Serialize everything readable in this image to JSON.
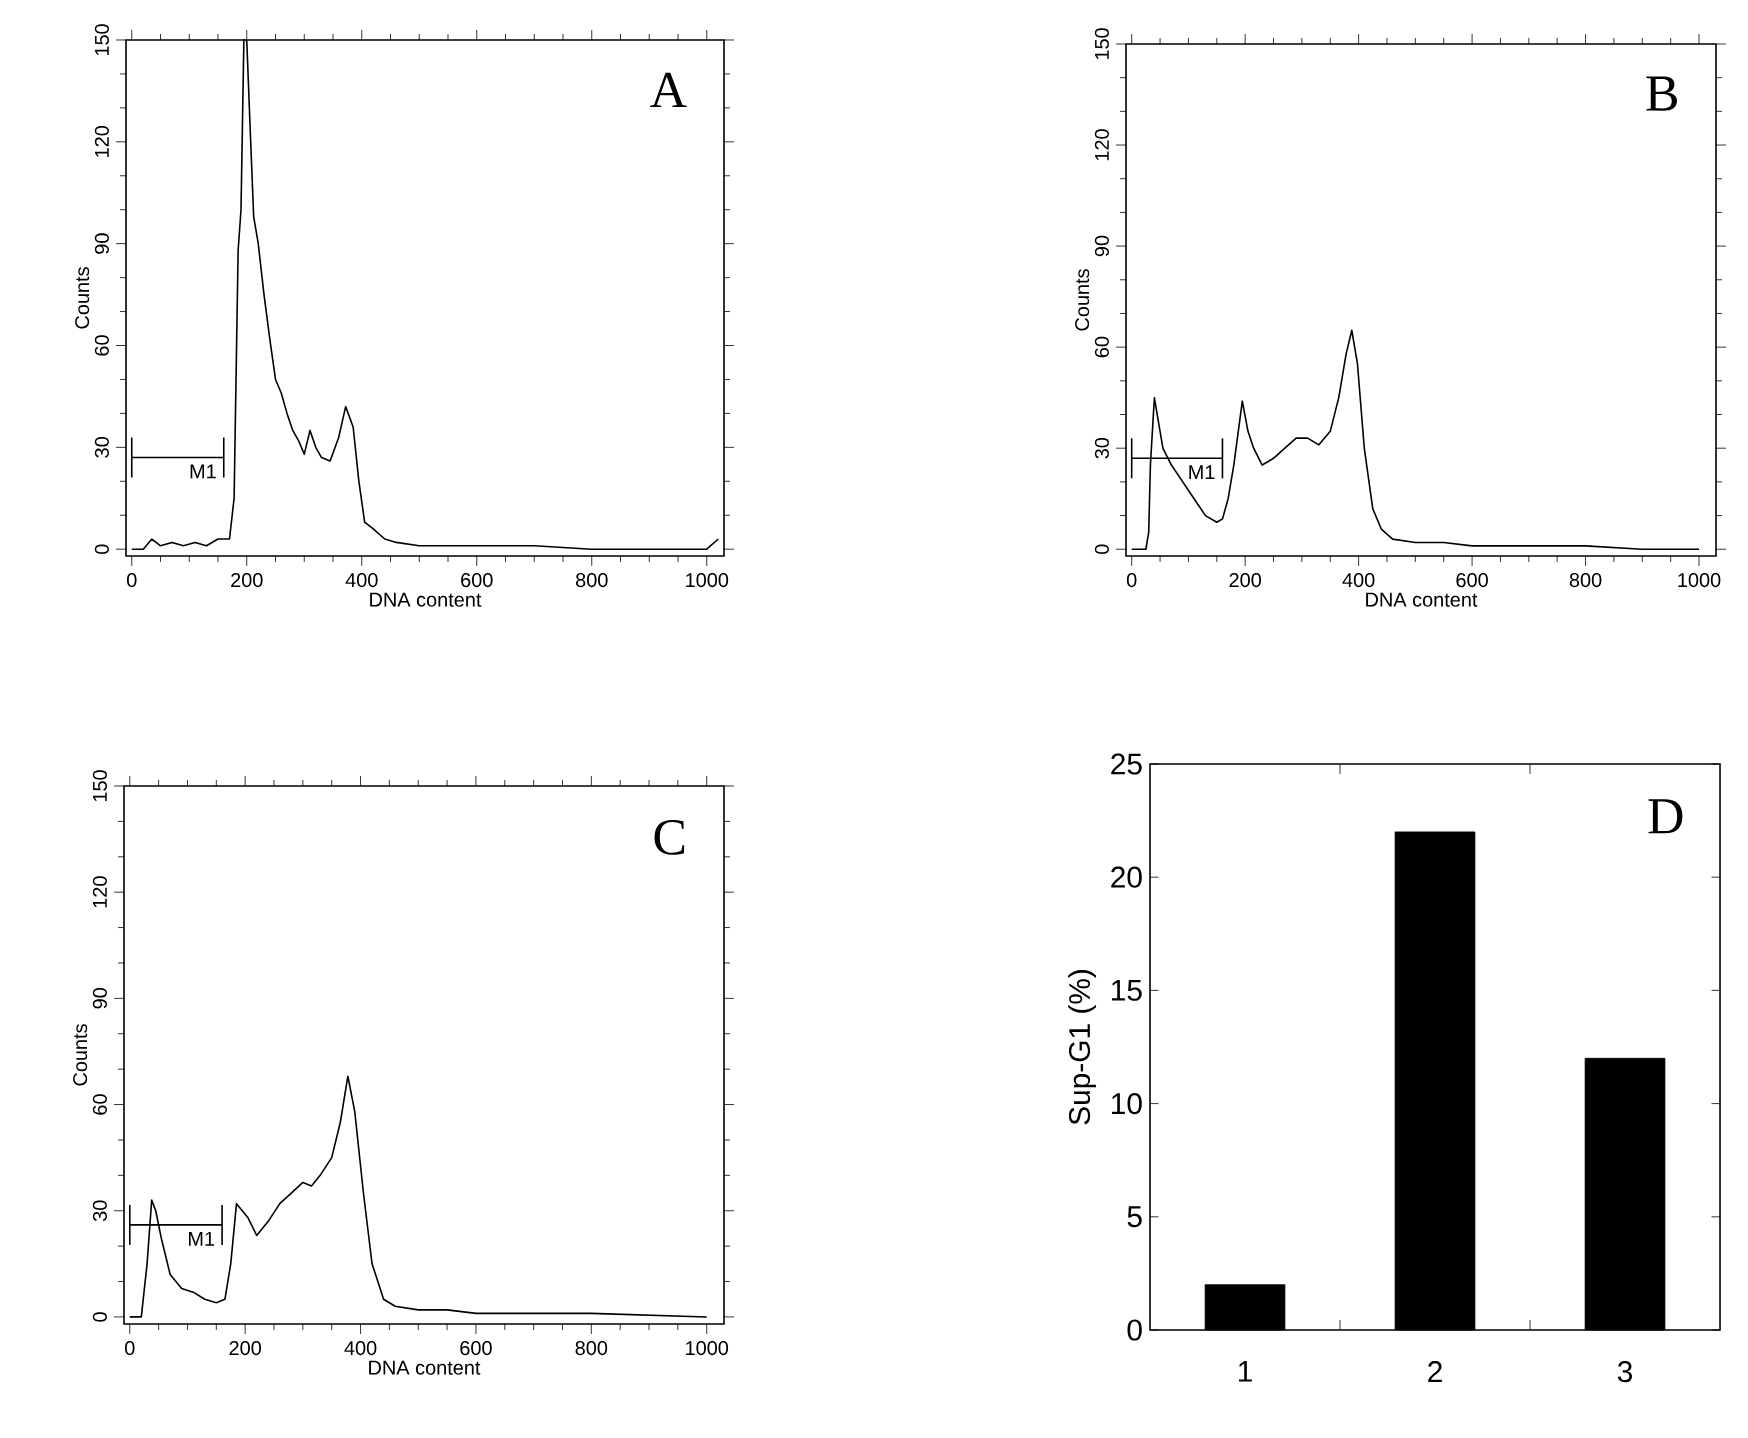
{
  "chart_data": [
    {
      "type": "line",
      "xlabel": "DNA content",
      "ylabel": "Counts",
      "xlim": [
        -10,
        1030
      ],
      "ylim": [
        -2,
        150
      ],
      "xticks": [
        0,
        200,
        400,
        600,
        800,
        1000
      ],
      "yticks": [
        0,
        30,
        60,
        90,
        120,
        150
      ],
      "annotations": [
        "A",
        "M1"
      ],
      "series": [
        {
          "color": "#000000",
          "x": [
            0,
            20,
            35,
            50,
            70,
            90,
            110,
            130,
            150,
            170,
            178,
            185,
            190,
            195,
            200,
            205,
            212,
            220,
            230,
            240,
            250,
            260,
            270,
            280,
            290,
            300,
            310,
            320,
            330,
            345,
            360,
            372,
            385,
            395,
            405,
            420,
            440,
            460,
            500,
            600,
            700,
            800,
            1000,
            1020
          ],
          "values": [
            0,
            0,
            3,
            1,
            2,
            1,
            2,
            1,
            3,
            3,
            15,
            88,
            100,
            150,
            150,
            128,
            98,
            90,
            75,
            62,
            50,
            46,
            40,
            35,
            32,
            28,
            35,
            30,
            27,
            26,
            33,
            42,
            36,
            20,
            8,
            6,
            3,
            2,
            1,
            1,
            1,
            0,
            0,
            3
          ]
        },
        {
          "type": "line",
          "color": "#000000",
          "x": [
            0,
            160
          ],
          "values": [
            27,
            27
          ]
        }
      ]
    },
    {
      "type": "line",
      "xlabel": "DNA content",
      "ylabel": "Counts",
      "xlim": [
        -10,
        1030
      ],
      "ylim": [
        -2,
        150
      ],
      "xticks": [
        0,
        200,
        400,
        600,
        800,
        1000
      ],
      "yticks": [
        0,
        30,
        60,
        90,
        120,
        150
      ],
      "annotations": [
        "B",
        "M1"
      ],
      "series": [
        {
          "color": "#000000",
          "x": [
            0,
            25,
            30,
            33,
            40,
            45,
            55,
            70,
            90,
            110,
            130,
            150,
            160,
            170,
            180,
            195,
            205,
            215,
            230,
            250,
            270,
            290,
            310,
            330,
            350,
            365,
            378,
            388,
            398,
            410,
            425,
            440,
            460,
            500,
            550,
            600,
            700,
            800,
            900,
            1000
          ],
          "values": [
            0,
            0,
            5,
            25,
            45,
            40,
            30,
            25,
            20,
            15,
            10,
            8,
            9,
            15,
            25,
            44,
            35,
            30,
            25,
            27,
            30,
            33,
            33,
            31,
            35,
            45,
            58,
            65,
            55,
            30,
            12,
            6,
            3,
            2,
            2,
            1,
            1,
            1,
            0,
            0
          ]
        },
        {
          "type": "line",
          "color": "#000000",
          "x": [
            0,
            160
          ],
          "values": [
            27,
            27
          ]
        }
      ]
    },
    {
      "type": "line",
      "xlabel": "DNA content",
      "ylabel": "Counts",
      "xlim": [
        -10,
        1030
      ],
      "ylim": [
        -2,
        150
      ],
      "xticks": [
        0,
        200,
        400,
        600,
        800,
        1000
      ],
      "yticks": [
        0,
        30,
        60,
        90,
        120,
        150
      ],
      "annotations": [
        "C",
        "M1"
      ],
      "series": [
        {
          "color": "#000000",
          "x": [
            0,
            20,
            30,
            38,
            45,
            55,
            70,
            90,
            110,
            130,
            150,
            165,
            175,
            185,
            195,
            205,
            220,
            240,
            260,
            280,
            300,
            315,
            330,
            350,
            365,
            378,
            390,
            405,
            420,
            440,
            460,
            500,
            550,
            600,
            700,
            800,
            1000
          ],
          "values": [
            0,
            0,
            15,
            33,
            30,
            22,
            12,
            8,
            7,
            5,
            4,
            5,
            15,
            32,
            30,
            28,
            23,
            27,
            32,
            35,
            38,
            37,
            40,
            45,
            55,
            68,
            58,
            35,
            15,
            5,
            3,
            2,
            2,
            1,
            1,
            1,
            0
          ]
        },
        {
          "type": "line",
          "color": "#000000",
          "x": [
            0,
            160
          ],
          "values": [
            26,
            26
          ]
        }
      ]
    },
    {
      "type": "bar",
      "ylabel": "Sup-G1 (%)",
      "categories": [
        "1",
        "2",
        "3"
      ],
      "values": [
        2,
        22,
        12
      ],
      "color": "#000000",
      "ylim": [
        0,
        25
      ],
      "yticks": [
        0,
        5,
        10,
        15,
        20,
        25
      ],
      "annotations": [
        "D"
      ]
    }
  ]
}
